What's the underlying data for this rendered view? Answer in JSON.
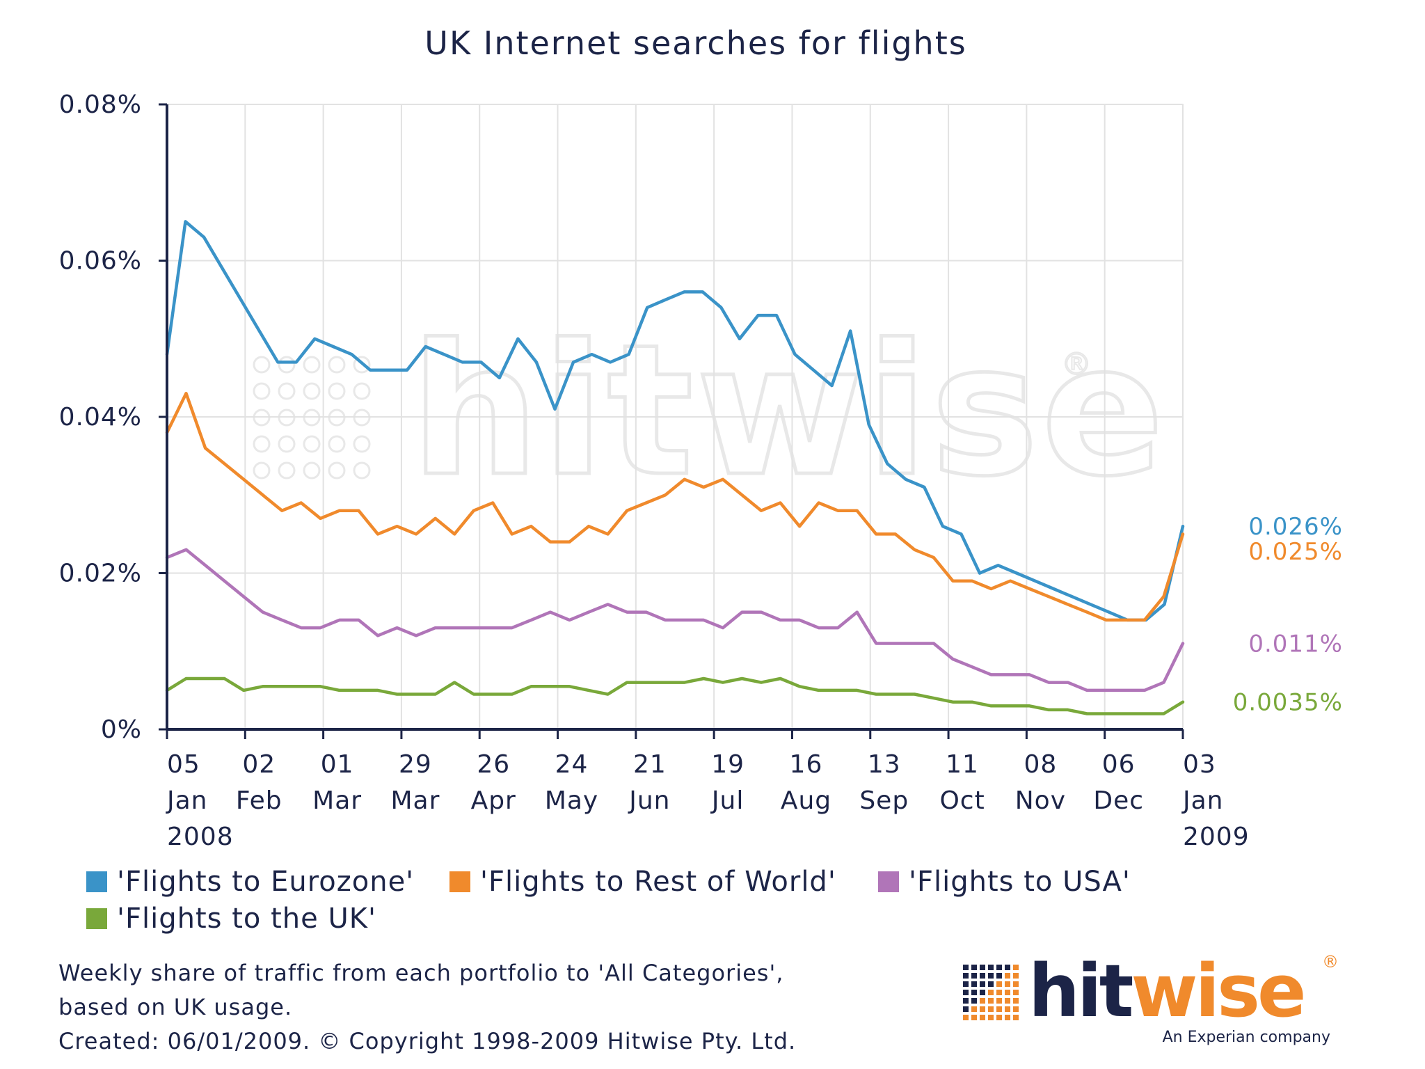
{
  "chart_data": {
    "type": "line",
    "title": "UK Internet searches for flights",
    "y_ticks": [
      "0%",
      "0.02%",
      "0.04%",
      "0.06%",
      "0.08%"
    ],
    "ylim": [
      0,
      0.08
    ],
    "y_unit": "%",
    "x_ticks": [
      {
        "day": "05",
        "month": "Jan",
        "year": "2008"
      },
      {
        "day": "02",
        "month": "Feb",
        "year": ""
      },
      {
        "day": "01",
        "month": "Mar",
        "year": ""
      },
      {
        "day": "29",
        "month": "Mar",
        "year": ""
      },
      {
        "day": "26",
        "month": "Apr",
        "year": ""
      },
      {
        "day": "24",
        "month": "May",
        "year": ""
      },
      {
        "day": "21",
        "month": "Jun",
        "year": ""
      },
      {
        "day": "19",
        "month": "Jul",
        "year": ""
      },
      {
        "day": "16",
        "month": "Aug",
        "year": ""
      },
      {
        "day": "13",
        "month": "Sep",
        "year": ""
      },
      {
        "day": "11",
        "month": "Oct",
        "year": ""
      },
      {
        "day": "08",
        "month": "Nov",
        "year": ""
      },
      {
        "day": "06",
        "month": "Dec",
        "year": ""
      },
      {
        "day": "03",
        "month": "Jan",
        "year": "2009"
      }
    ],
    "grid": true,
    "legend_position": "bottom",
    "series": [
      {
        "name": "'Flights to Eurozone'",
        "color": "#3a93c8",
        "end_label": "0.026%",
        "values": [
          0.048,
          0.065,
          0.063,
          0.059,
          0.055,
          0.051,
          0.047,
          0.047,
          0.05,
          0.049,
          0.048,
          0.046,
          0.046,
          0.046,
          0.049,
          0.048,
          0.047,
          0.047,
          0.045,
          0.05,
          0.047,
          0.041,
          0.047,
          0.048,
          0.047,
          0.048,
          0.054,
          0.055,
          0.056,
          0.056,
          0.054,
          0.05,
          0.053,
          0.053,
          0.048,
          0.046,
          0.044,
          0.051,
          0.039,
          0.034,
          0.032,
          0.031,
          0.026,
          0.025,
          0.02,
          0.021,
          0.02,
          0.019,
          0.018,
          0.017,
          0.016,
          0.015,
          0.014,
          0.014,
          0.016,
          0.026
        ]
      },
      {
        "name": "'Flights to Rest of World'",
        "color": "#f08a2c",
        "end_label": "0.025%",
        "values": [
          0.038,
          0.043,
          0.036,
          0.034,
          0.032,
          0.03,
          0.028,
          0.029,
          0.027,
          0.028,
          0.028,
          0.025,
          0.026,
          0.025,
          0.027,
          0.025,
          0.028,
          0.029,
          0.025,
          0.026,
          0.024,
          0.024,
          0.026,
          0.025,
          0.028,
          0.029,
          0.03,
          0.032,
          0.031,
          0.032,
          0.03,
          0.028,
          0.029,
          0.026,
          0.029,
          0.028,
          0.028,
          0.025,
          0.025,
          0.023,
          0.022,
          0.019,
          0.019,
          0.018,
          0.019,
          0.018,
          0.017,
          0.016,
          0.015,
          0.014,
          0.014,
          0.014,
          0.017,
          0.025
        ]
      },
      {
        "name": "'Flights to USA'",
        "color": "#b075b8",
        "end_label": "0.011%",
        "values": [
          0.022,
          0.023,
          0.021,
          0.019,
          0.017,
          0.015,
          0.014,
          0.013,
          0.013,
          0.014,
          0.014,
          0.012,
          0.013,
          0.012,
          0.013,
          0.013,
          0.013,
          0.013,
          0.013,
          0.014,
          0.015,
          0.014,
          0.015,
          0.016,
          0.015,
          0.015,
          0.014,
          0.014,
          0.014,
          0.013,
          0.015,
          0.015,
          0.014,
          0.014,
          0.013,
          0.013,
          0.015,
          0.011,
          0.011,
          0.011,
          0.011,
          0.009,
          0.008,
          0.007,
          0.007,
          0.007,
          0.006,
          0.006,
          0.005,
          0.005,
          0.005,
          0.005,
          0.006,
          0.011
        ]
      },
      {
        "name": "'Flights to the UK'",
        "color": "#79a83a",
        "end_label": "0.0035%",
        "values": [
          0.005,
          0.0065,
          0.0065,
          0.0065,
          0.005,
          0.0055,
          0.0055,
          0.0055,
          0.0055,
          0.005,
          0.005,
          0.005,
          0.0045,
          0.0045,
          0.0045,
          0.006,
          0.0045,
          0.0045,
          0.0045,
          0.0055,
          0.0055,
          0.0055,
          0.005,
          0.0045,
          0.006,
          0.006,
          0.006,
          0.006,
          0.0065,
          0.006,
          0.0065,
          0.006,
          0.0065,
          0.0055,
          0.005,
          0.005,
          0.005,
          0.0045,
          0.0045,
          0.0045,
          0.004,
          0.0035,
          0.0035,
          0.003,
          0.003,
          0.003,
          0.0025,
          0.0025,
          0.002,
          0.002,
          0.002,
          0.002,
          0.002,
          0.0035
        ]
      }
    ]
  },
  "footer": {
    "line1": "Weekly share of traffic from each portfolio to 'All Categories',",
    "line2": "based on UK usage.",
    "line3": "Created: 06/01/2009. © Copyright 1998-2009 Hitwise Pty. Ltd."
  },
  "logo": {
    "brand_prefix": "hit",
    "brand_suffix": "wise",
    "registered": "®",
    "tagline": "An Experian company",
    "prefix_color": "#1c2447",
    "suffix_color": "#f08a2c"
  },
  "watermark": {
    "text": "hitwise",
    "registered": "®"
  }
}
